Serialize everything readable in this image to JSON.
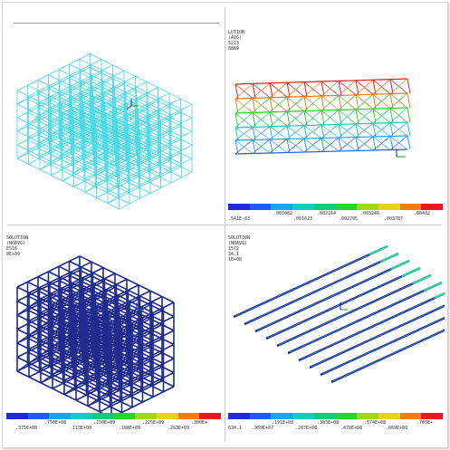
{
  "panel2": {
    "legend": [
      "LUTION",
      "(AVG)",
      "5213",
      "8869"
    ],
    "top_labels": [
      ".001082",
      ".002164",
      ".003246",
      ".00432"
    ],
    "bottom_labels": [
      ".541E-03",
      ".001623",
      ".002705",
      ".003787"
    ]
  },
  "panel3": {
    "legend": [
      "SOLUTION",
      "(NOAVG)",
      "E516",
      "8E+09"
    ],
    "top_labels": [
      ".750E+08",
      ".150E+09",
      ".225E+09",
      ".300E+"
    ],
    "bottom_labels": [
      ".375E+08",
      ".113E+09",
      ".188E+09",
      ".263E+09"
    ]
  },
  "panel4": {
    "legend": [
      "SOLUTION",
      "(NOAVG)",
      "1572",
      "34.1",
      "1E+08"
    ],
    "top_labels": [
      ".191E+08",
      ".383E+08",
      ".574E+08",
      ".765E+"
    ],
    "bottom_labels": [
      "634.1",
      ".959E+07",
      ".287E+08",
      ".478E+08",
      ".669E+08"
    ]
  },
  "contour_colors": [
    "#1b2bd6",
    "#1f5cf0",
    "#1fa3e6",
    "#18c9c2",
    "#19c77a",
    "#2ccf2c",
    "#9fd61f",
    "#e6d21a",
    "#f07e16",
    "#e61a1a"
  ],
  "colors": {
    "frame_cyan": "#3fd7e6",
    "frame_navy": "#1f2a8c",
    "bar_blue": "#2a39a8"
  }
}
